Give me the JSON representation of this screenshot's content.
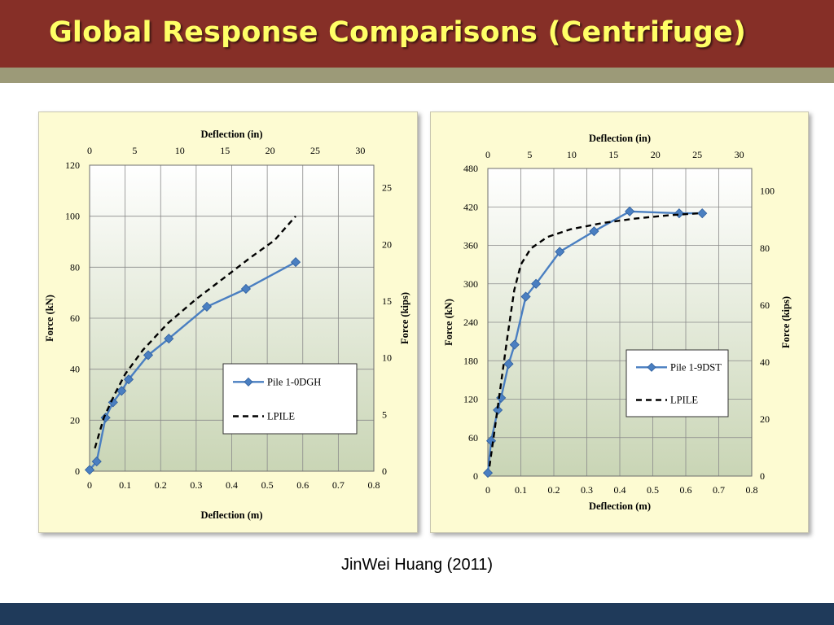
{
  "slide": {
    "title": "Global Response Comparisons (Centrifuge)",
    "citation": "JinWei Huang (2011)"
  },
  "colors": {
    "title_bar": "#862f27",
    "title_text": "#ffff66",
    "accent_bar": "#9c9a78",
    "footer_bar": "#1f3a5a",
    "chart_background": "#fdfbd2",
    "series_blue": "#4a7fc1",
    "series_lpile": "#000000"
  },
  "chart_data": [
    {
      "type": "line",
      "x_bottom_label": "Deflection (m)",
      "x_top_label": "Deflection (in)",
      "y_left_label": "Force (kN)",
      "y_right_label": "Force (kips)",
      "x_bottom_range": [
        0,
        0.8
      ],
      "x_bottom_ticks": [
        "0",
        "0.1",
        "0.2",
        "0.3",
        "0.4",
        "0.5",
        "0.6",
        "0.7",
        "0.8"
      ],
      "x_top_ticks": [
        "0",
        "5",
        "10",
        "15",
        "20",
        "25",
        "30"
      ],
      "y_left_range": [
        0,
        120
      ],
      "y_left_ticks": [
        "0",
        "20",
        "40",
        "60",
        "80",
        "100",
        "120"
      ],
      "y_right_ticks": [
        "0",
        "5",
        "10",
        "15",
        "20",
        "25"
      ],
      "grid": true,
      "legend_position": "bottom-right",
      "series": [
        {
          "name": "Pile 1-0DGH",
          "style": "solid-diamond",
          "x": [
            0.0,
            0.02,
            0.045,
            0.066,
            0.09,
            0.11,
            0.165,
            0.223,
            0.33,
            0.44,
            0.58
          ],
          "y": [
            0.5,
            3.8,
            21,
            27,
            31.5,
            36,
            45.5,
            52,
            64.5,
            71.5,
            82
          ]
        },
        {
          "name": "LPILE",
          "style": "dashed",
          "x": [
            0.015,
            0.04,
            0.07,
            0.1,
            0.15,
            0.22,
            0.3,
            0.38,
            0.45,
            0.52,
            0.58
          ],
          "y": [
            9,
            21,
            30,
            38,
            47.5,
            58,
            67.5,
            76,
            83.5,
            90.5,
            100
          ]
        }
      ]
    },
    {
      "type": "line",
      "x_bottom_label": "Deflection (m)",
      "x_top_label": "Deflection (in)",
      "y_left_label": "Force (kN)",
      "y_right_label": "Force (kips)",
      "x_bottom_range": [
        0,
        0.8
      ],
      "x_bottom_ticks": [
        "0",
        "0.1",
        "0.2",
        "0.3",
        "0.4",
        "0.5",
        "0.6",
        "0.7",
        "0.8"
      ],
      "x_top_ticks": [
        "0",
        "5",
        "10",
        "15",
        "20",
        "25",
        "30"
      ],
      "y_left_range": [
        0,
        480
      ],
      "y_left_ticks": [
        "0",
        "60",
        "120",
        "180",
        "240",
        "300",
        "360",
        "420",
        "480"
      ],
      "y_right_ticks": [
        "0",
        "20",
        "40",
        "60",
        "80",
        "100"
      ],
      "grid": true,
      "legend_position": "bottom-right",
      "series": [
        {
          "name": "Pile 1-9DST",
          "style": "solid-diamond",
          "x": [
            0.0,
            0.01,
            0.03,
            0.04,
            0.063,
            0.081,
            0.115,
            0.146,
            0.218,
            0.322,
            0.43,
            0.58,
            0.65
          ],
          "y": [
            5,
            55,
            103,
            122,
            175,
            205,
            280,
            300,
            350,
            382,
            413,
            410,
            410
          ]
        },
        {
          "name": "LPILE",
          "style": "dashed",
          "x": [
            0.005,
            0.02,
            0.04,
            0.06,
            0.08,
            0.1,
            0.13,
            0.18,
            0.25,
            0.35,
            0.45,
            0.55,
            0.64
          ],
          "y": [
            15,
            70,
            145,
            220,
            290,
            330,
            355,
            373,
            385,
            395,
            402,
            407,
            410
          ]
        }
      ]
    }
  ]
}
